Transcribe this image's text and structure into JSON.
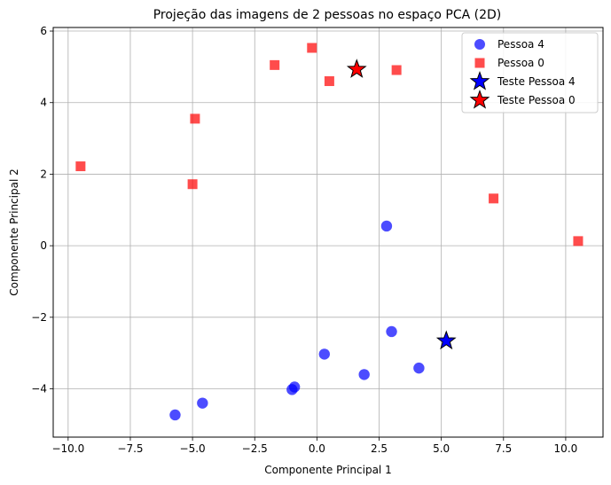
{
  "chart_data": {
    "type": "scatter",
    "title": "Projeção das imagens de 2 pessoas no espaço PCA (2D)",
    "xlabel": "Componente Principal 1",
    "ylabel": "Componente Principal 2",
    "xlim": [
      -10.6,
      11.5
    ],
    "ylim": [
      -5.35,
      6.1
    ],
    "xticks": [
      -10.0,
      -7.5,
      -5.0,
      -2.5,
      0.0,
      2.5,
      5.0,
      7.5,
      10.0
    ],
    "xtick_labels": [
      "−10.0",
      "−7.5",
      "−5.0",
      "−2.5",
      "0.0",
      "2.5",
      "5.0",
      "7.5",
      "10.0"
    ],
    "yticks": [
      -4,
      -2,
      0,
      2,
      4,
      6
    ],
    "ytick_labels": [
      "−4",
      "−2",
      "0",
      "2",
      "4",
      "6"
    ],
    "grid": true,
    "legend_position": "top-right",
    "series": [
      {
        "name": "Pessoa 4",
        "marker": "circle",
        "color": "#0000ff",
        "points": [
          {
            "x": 2.8,
            "y": 0.55
          },
          {
            "x": 3.0,
            "y": -2.4
          },
          {
            "x": 4.1,
            "y": -3.42
          },
          {
            "x": 0.3,
            "y": -3.03
          },
          {
            "x": 1.9,
            "y": -3.6
          },
          {
            "x": -0.9,
            "y": -3.95
          },
          {
            "x": -1.0,
            "y": -4.02
          },
          {
            "x": -4.6,
            "y": -4.4
          },
          {
            "x": -5.7,
            "y": -4.73
          }
        ]
      },
      {
        "name": "Pessoa 0",
        "marker": "square",
        "color": "#ff0000",
        "points": [
          {
            "x": -0.2,
            "y": 5.53
          },
          {
            "x": -1.7,
            "y": 5.05
          },
          {
            "x": 3.2,
            "y": 4.91
          },
          {
            "x": 0.5,
            "y": 4.6
          },
          {
            "x": -4.9,
            "y": 3.55
          },
          {
            "x": -9.5,
            "y": 2.22
          },
          {
            "x": -5.0,
            "y": 1.72
          },
          {
            "x": 7.1,
            "y": 1.32
          },
          {
            "x": 10.5,
            "y": 0.13
          }
        ]
      },
      {
        "name": "Teste Pessoa 4",
        "marker": "star",
        "color": "#0000ff",
        "points": [
          {
            "x": 5.2,
            "y": -2.66
          }
        ]
      },
      {
        "name": "Teste Pessoa 0",
        "marker": "star",
        "color": "#ff0000",
        "points": [
          {
            "x": 1.6,
            "y": 4.93
          }
        ]
      }
    ]
  }
}
